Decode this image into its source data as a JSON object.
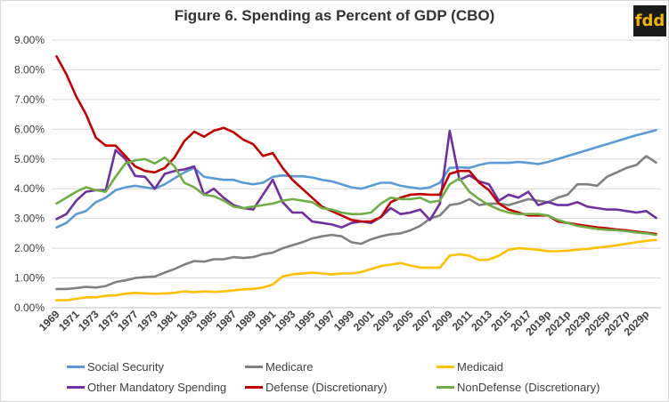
{
  "chart_data": {
    "type": "line",
    "title": "Figure 6. Spending as Percent of GDP (CBO)",
    "logo": "fdd",
    "ylim": [
      0,
      9
    ],
    "y_ticks": [
      "0.00%",
      "1.00%",
      "2.00%",
      "3.00%",
      "4.00%",
      "5.00%",
      "6.00%",
      "7.00%",
      "8.00%",
      "9.00%"
    ],
    "x_tick_labels": [
      "1969",
      "1971",
      "1973",
      "1975",
      "1977",
      "1979",
      "1981",
      "1983",
      "1985",
      "1987",
      "1989",
      "1991",
      "1993",
      "1995",
      "1997",
      "1999",
      "2001",
      "2003",
      "2005",
      "2007",
      "2009",
      "2011",
      "2013",
      "2015",
      "2017",
      "2019p",
      "2021p",
      "2023p",
      "2025p",
      "2027p",
      "2029p"
    ],
    "grid": true,
    "legend_position": "bottom",
    "series": [
      {
        "name": "Social Security",
        "color": "#5b9bd5",
        "values": [
          2.7,
          2.85,
          3.15,
          3.25,
          3.55,
          3.7,
          3.95,
          4.05,
          4.1,
          4.05,
          4.0,
          4.15,
          4.35,
          4.55,
          4.7,
          4.4,
          4.35,
          4.3,
          4.3,
          4.2,
          4.15,
          4.2,
          4.4,
          4.45,
          4.42,
          4.42,
          4.38,
          4.3,
          4.25,
          4.15,
          4.05,
          4.0,
          4.1,
          4.2,
          4.2,
          4.1,
          4.05,
          4.0,
          4.05,
          4.2,
          4.7,
          4.72,
          4.7,
          4.8,
          4.87,
          4.87,
          4.87,
          4.9,
          4.87,
          4.83,
          4.9,
          5.0,
          5.1,
          5.2,
          5.3,
          5.4,
          5.5,
          5.6,
          5.7,
          5.8,
          5.88,
          5.97
        ]
      },
      {
        "name": "Medicare",
        "color": "#808080",
        "values": [
          0.63,
          0.63,
          0.66,
          0.7,
          0.68,
          0.73,
          0.86,
          0.92,
          1.0,
          1.03,
          1.05,
          1.18,
          1.3,
          1.45,
          1.57,
          1.55,
          1.63,
          1.63,
          1.7,
          1.67,
          1.7,
          1.8,
          1.85,
          2.0,
          2.1,
          2.2,
          2.33,
          2.4,
          2.45,
          2.4,
          2.2,
          2.15,
          2.3,
          2.4,
          2.47,
          2.5,
          2.6,
          2.75,
          3.0,
          3.1,
          3.45,
          3.5,
          3.65,
          3.45,
          3.5,
          3.5,
          3.45,
          3.55,
          3.65,
          3.6,
          3.55,
          3.7,
          3.8,
          4.15,
          4.15,
          4.1,
          4.4,
          4.55,
          4.7,
          4.8,
          5.1,
          4.88
        ]
      },
      {
        "name": "Medicaid",
        "color": "#ffc000",
        "values": [
          0.25,
          0.25,
          0.3,
          0.35,
          0.35,
          0.4,
          0.42,
          0.47,
          0.5,
          0.48,
          0.47,
          0.48,
          0.5,
          0.55,
          0.52,
          0.55,
          0.53,
          0.55,
          0.58,
          0.62,
          0.63,
          0.68,
          0.78,
          1.05,
          1.12,
          1.15,
          1.18,
          1.15,
          1.12,
          1.15,
          1.15,
          1.2,
          1.3,
          1.4,
          1.45,
          1.5,
          1.42,
          1.35,
          1.35,
          1.35,
          1.75,
          1.8,
          1.75,
          1.6,
          1.62,
          1.75,
          1.95,
          2.0,
          1.98,
          1.95,
          1.9,
          1.9,
          1.92,
          1.95,
          1.98,
          2.02,
          2.05,
          2.1,
          2.15,
          2.2,
          2.25,
          2.28
        ]
      },
      {
        "name": "Other Mandatory Spending",
        "color": "#7030a0",
        "values": [
          2.98,
          3.15,
          3.6,
          3.9,
          3.95,
          3.95,
          5.3,
          5.0,
          4.43,
          4.4,
          4.0,
          4.5,
          4.6,
          4.65,
          4.75,
          3.8,
          4.0,
          3.7,
          3.45,
          3.35,
          3.3,
          3.8,
          4.3,
          3.55,
          3.2,
          3.2,
          2.9,
          2.85,
          2.8,
          2.7,
          2.85,
          2.9,
          2.85,
          3.05,
          3.35,
          3.15,
          3.2,
          3.3,
          2.95,
          3.5,
          5.95,
          4.3,
          4.45,
          4.25,
          4.15,
          3.6,
          3.8,
          3.7,
          3.9,
          3.45,
          3.55,
          3.45,
          3.45,
          3.55,
          3.4,
          3.35,
          3.3,
          3.3,
          3.25,
          3.2,
          3.25,
          3.02
        ]
      },
      {
        "name": "Defense (Discretionary)",
        "color": "#c00000",
        "values": [
          8.45,
          7.85,
          7.1,
          6.5,
          5.72,
          5.45,
          5.45,
          5.1,
          4.75,
          4.6,
          4.55,
          4.7,
          5.05,
          5.6,
          5.92,
          5.75,
          5.95,
          6.05,
          5.9,
          5.65,
          5.5,
          5.1,
          5.2,
          4.7,
          4.3,
          4.0,
          3.7,
          3.4,
          3.25,
          3.1,
          2.95,
          2.9,
          2.9,
          3.05,
          3.55,
          3.7,
          3.8,
          3.82,
          3.8,
          3.8,
          4.5,
          4.6,
          4.6,
          4.2,
          3.95,
          3.5,
          3.3,
          3.2,
          3.1,
          3.1,
          3.1,
          2.9,
          2.85,
          2.8,
          2.75,
          2.7,
          2.67,
          2.63,
          2.6,
          2.56,
          2.52,
          2.48
        ]
      },
      {
        "name": "NonDefense (Discretionary)",
        "color": "#70ad47",
        "values": [
          3.5,
          3.7,
          3.9,
          4.05,
          3.95,
          3.9,
          4.4,
          4.85,
          4.95,
          5.0,
          4.85,
          5.05,
          4.75,
          4.2,
          4.05,
          3.8,
          3.75,
          3.6,
          3.4,
          3.35,
          3.4,
          3.45,
          3.5,
          3.6,
          3.65,
          3.6,
          3.55,
          3.35,
          3.3,
          3.2,
          3.15,
          3.15,
          3.2,
          3.5,
          3.7,
          3.65,
          3.65,
          3.7,
          3.55,
          3.6,
          4.15,
          4.35,
          3.9,
          3.65,
          3.45,
          3.3,
          3.2,
          3.15,
          3.15,
          3.15,
          3.1,
          2.95,
          2.85,
          2.75,
          2.7,
          2.65,
          2.62,
          2.6,
          2.57,
          2.53,
          2.5,
          2.45
        ]
      }
    ]
  }
}
